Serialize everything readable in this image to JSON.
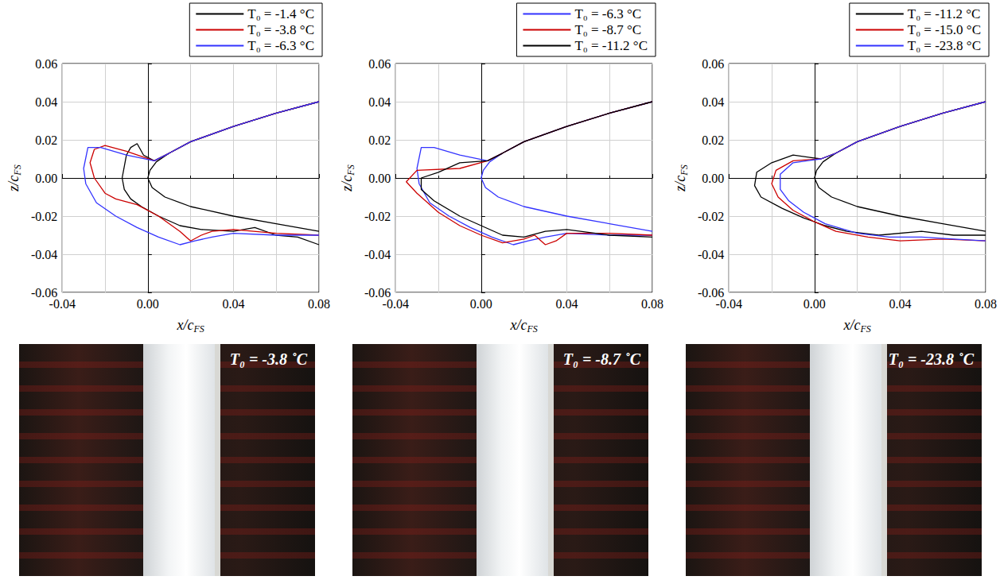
{
  "chart_data": [
    {
      "type": "line",
      "xlabel": {
        "main": "x/c",
        "sub": "FS"
      },
      "ylabel": {
        "main": "z/c",
        "sub": "FS"
      },
      "xlim": [
        -0.04,
        0.08
      ],
      "xticks": [
        -0.04,
        {
          "value": 0,
          "label": "0.00"
        },
        0.04,
        0.08
      ],
      "ylim": [
        -0.06,
        0.06
      ],
      "yticks": [
        -0.06,
        -0.04,
        -0.02,
        {
          "value": 0,
          "label": "0.00"
        },
        0.02,
        0.04,
        0.06
      ],
      "grid": true,
      "legend": "upper right",
      "airfoil": {
        "color": "#000000",
        "x": [
          0.08,
          0.06,
          0.04,
          0.02,
          0.01,
          0.004,
          0.001,
          0,
          0.002,
          0.008,
          0.02,
          0.04,
          0.06,
          0.08
        ],
        "values": [
          0.04,
          0.034,
          0.027,
          0.019,
          0.013,
          0.0085,
          0.004,
          0,
          -0.005,
          -0.01,
          -0.015,
          -0.02,
          -0.024,
          -0.028
        ]
      },
      "series": [
        {
          "name": "T₀ = -1.4 °C",
          "color": "#000000",
          "x": [
            0.08,
            0.06,
            0.04,
            0.02,
            0.01,
            0.003,
            -0.002,
            -0.005,
            -0.008,
            -0.01,
            -0.012,
            -0.011,
            -0.008,
            -0.003,
            0.005,
            0.015,
            0.025,
            0.04,
            0.05,
            0.06,
            0.07,
            0.08
          ],
          "values": [
            0.04,
            0.034,
            0.027,
            0.019,
            0.013,
            0.009,
            0.012,
            0.018,
            0.016,
            0.012,
            0.0,
            -0.006,
            -0.011,
            -0.015,
            -0.02,
            -0.025,
            -0.027,
            -0.028,
            -0.026,
            -0.03,
            -0.031,
            -0.035
          ]
        },
        {
          "name": "T₀ = -3.8 °C",
          "color": "#cc0000",
          "x": [
            0.08,
            0.06,
            0.04,
            0.02,
            0.01,
            0.003,
            -0.01,
            -0.02,
            -0.025,
            -0.027,
            -0.025,
            -0.02,
            -0.015,
            -0.005,
            0.005,
            0.015,
            0.02,
            0.025,
            0.03,
            0.04,
            0.06,
            0.08
          ],
          "values": [
            0.04,
            0.034,
            0.027,
            0.019,
            0.013,
            0.009,
            0.014,
            0.017,
            0.015,
            0.008,
            0.0,
            -0.008,
            -0.011,
            -0.014,
            -0.02,
            -0.028,
            -0.033,
            -0.03,
            -0.028,
            -0.027,
            -0.029,
            -0.03
          ]
        },
        {
          "name": "T₀ = -6.3 °C",
          "color": "#3333ff",
          "x": [
            0.08,
            0.06,
            0.04,
            0.02,
            0.01,
            0.003,
            -0.01,
            -0.022,
            -0.028,
            -0.03,
            -0.029,
            -0.024,
            -0.015,
            -0.005,
            0.005,
            0.015,
            0.022,
            0.03,
            0.04,
            0.06,
            0.08
          ],
          "values": [
            0.04,
            0.034,
            0.027,
            0.019,
            0.013,
            0.009,
            0.012,
            0.016,
            0.016,
            0.005,
            -0.003,
            -0.013,
            -0.02,
            -0.026,
            -0.031,
            -0.035,
            -0.033,
            -0.031,
            -0.029,
            -0.03,
            -0.03
          ]
        }
      ]
    },
    {
      "type": "line",
      "xlabel": {
        "main": "x/c",
        "sub": "FS"
      },
      "ylabel": {
        "main": "z/c",
        "sub": "FS"
      },
      "xlim": [
        -0.04,
        0.08
      ],
      "xticks": [
        -0.04,
        {
          "value": 0,
          "label": "0.00"
        },
        0.04,
        0.08
      ],
      "ylim": [
        -0.06,
        0.06
      ],
      "yticks": [
        -0.06,
        -0.04,
        -0.02,
        {
          "value": 0,
          "label": "0.00"
        },
        0.02,
        0.04,
        0.06
      ],
      "grid": true,
      "legend": "upper right",
      "airfoil": {
        "color": "#3333ff",
        "x": [
          0.08,
          0.06,
          0.04,
          0.02,
          0.01,
          0.004,
          0.001,
          0,
          0.002,
          0.008,
          0.02,
          0.04,
          0.06,
          0.08
        ],
        "values": [
          0.04,
          0.034,
          0.027,
          0.019,
          0.013,
          0.0085,
          0.004,
          0,
          -0.005,
          -0.01,
          -0.015,
          -0.02,
          -0.024,
          -0.028
        ]
      },
      "series": [
        {
          "name": "T₀ = -6.3 °C",
          "color": "#3333ff",
          "x": [
            0.08,
            0.06,
            0.04,
            0.02,
            0.01,
            0.003,
            -0.01,
            -0.022,
            -0.028,
            -0.03,
            -0.029,
            -0.024,
            -0.015,
            -0.005,
            0.005,
            0.015,
            0.022,
            0.03,
            0.04,
            0.06,
            0.08
          ],
          "values": [
            0.04,
            0.034,
            0.027,
            0.019,
            0.013,
            0.009,
            0.012,
            0.016,
            0.016,
            0.005,
            -0.003,
            -0.013,
            -0.02,
            -0.026,
            -0.031,
            -0.035,
            -0.033,
            -0.031,
            -0.029,
            -0.03,
            -0.03
          ]
        },
        {
          "name": "T₀ = -8.7 °C",
          "color": "#cc0000",
          "x": [
            0.08,
            0.06,
            0.04,
            0.02,
            0.01,
            0.003,
            -0.01,
            -0.03,
            -0.035,
            -0.03,
            -0.02,
            -0.01,
            0.0,
            0.01,
            0.02,
            0.025,
            0.03,
            0.035,
            0.04,
            0.06,
            0.08
          ],
          "values": [
            0.04,
            0.034,
            0.027,
            0.019,
            0.013,
            0.009,
            0.005,
            0.004,
            -0.002,
            -0.008,
            -0.018,
            -0.025,
            -0.03,
            -0.034,
            -0.032,
            -0.03,
            -0.035,
            -0.033,
            -0.029,
            -0.029,
            -0.03
          ]
        },
        {
          "name": "T₀ = -11.2 °C",
          "color": "#000000",
          "x": [
            0.08,
            0.06,
            0.04,
            0.02,
            0.01,
            0.003,
            -0.01,
            -0.02,
            -0.028,
            -0.028,
            -0.022,
            -0.01,
            0.0,
            0.01,
            0.02,
            0.03,
            0.04,
            0.06,
            0.08
          ],
          "values": [
            0.04,
            0.034,
            0.027,
            0.019,
            0.013,
            0.009,
            0.008,
            0.003,
            0.0,
            -0.006,
            -0.012,
            -0.02,
            -0.025,
            -0.03,
            -0.031,
            -0.028,
            -0.027,
            -0.03,
            -0.031
          ]
        }
      ]
    },
    {
      "type": "line",
      "xlabel": {
        "main": "x/c",
        "sub": "FS"
      },
      "ylabel": {
        "main": "z/c",
        "sub": "FS"
      },
      "xlim": [
        -0.04,
        0.08
      ],
      "xticks": [
        -0.04,
        {
          "value": 0,
          "label": "0.00"
        },
        0.04,
        0.08
      ],
      "ylim": [
        -0.06,
        0.06
      ],
      "yticks": [
        -0.06,
        -0.04,
        -0.02,
        {
          "value": 0,
          "label": "0.00"
        },
        0.02,
        0.04,
        0.06
      ],
      "grid": true,
      "legend": "upper right",
      "airfoil": {
        "color": "#000000",
        "x": [
          0.08,
          0.06,
          0.04,
          0.02,
          0.01,
          0.004,
          0.001,
          0,
          0.002,
          0.008,
          0.02,
          0.04,
          0.06,
          0.08
        ],
        "values": [
          0.04,
          0.034,
          0.027,
          0.019,
          0.013,
          0.0085,
          0.004,
          0,
          -0.005,
          -0.01,
          -0.015,
          -0.02,
          -0.024,
          -0.028
        ]
      },
      "series": [
        {
          "name": "T₀ = -11.2 °C",
          "color": "#000000",
          "x": [
            0.08,
            0.06,
            0.04,
            0.02,
            0.01,
            0.003,
            -0.01,
            -0.02,
            -0.027,
            -0.028,
            -0.025,
            -0.015,
            -0.005,
            0.005,
            0.015,
            0.03,
            0.05,
            0.065,
            0.08
          ],
          "values": [
            0.04,
            0.034,
            0.027,
            0.019,
            0.013,
            0.01,
            0.012,
            0.008,
            0.003,
            -0.004,
            -0.01,
            -0.016,
            -0.021,
            -0.025,
            -0.028,
            -0.03,
            -0.028,
            -0.03,
            -0.03
          ]
        },
        {
          "name": "T₀ = -15.0 °C",
          "color": "#cc0000",
          "x": [
            0.08,
            0.06,
            0.04,
            0.02,
            0.01,
            0.003,
            -0.01,
            -0.018,
            -0.02,
            -0.017,
            -0.01,
            0.0,
            0.01,
            0.025,
            0.04,
            0.06,
            0.08
          ],
          "values": [
            0.04,
            0.034,
            0.027,
            0.019,
            0.013,
            0.01,
            0.009,
            0.004,
            -0.003,
            -0.01,
            -0.017,
            -0.023,
            -0.028,
            -0.031,
            -0.033,
            -0.032,
            -0.033
          ]
        },
        {
          "name": "T₀ = -23.8 °C",
          "color": "#3333ff",
          "x": [
            0.08,
            0.06,
            0.04,
            0.02,
            0.01,
            0.003,
            -0.01,
            -0.016,
            -0.016,
            -0.012,
            -0.005,
            0.005,
            0.02,
            0.035,
            0.05,
            0.065,
            0.08
          ],
          "values": [
            0.04,
            0.034,
            0.027,
            0.019,
            0.013,
            0.01,
            0.008,
            0.002,
            -0.006,
            -0.012,
            -0.018,
            -0.024,
            -0.029,
            -0.031,
            -0.031,
            -0.032,
            -0.033
          ]
        }
      ]
    }
  ],
  "photos": [
    {
      "label": "T₀ = -3.8 ˚C"
    },
    {
      "label": "T₀ = -8.7 ˚C"
    },
    {
      "label": "T₀ = -23.8 ˚C"
    }
  ]
}
